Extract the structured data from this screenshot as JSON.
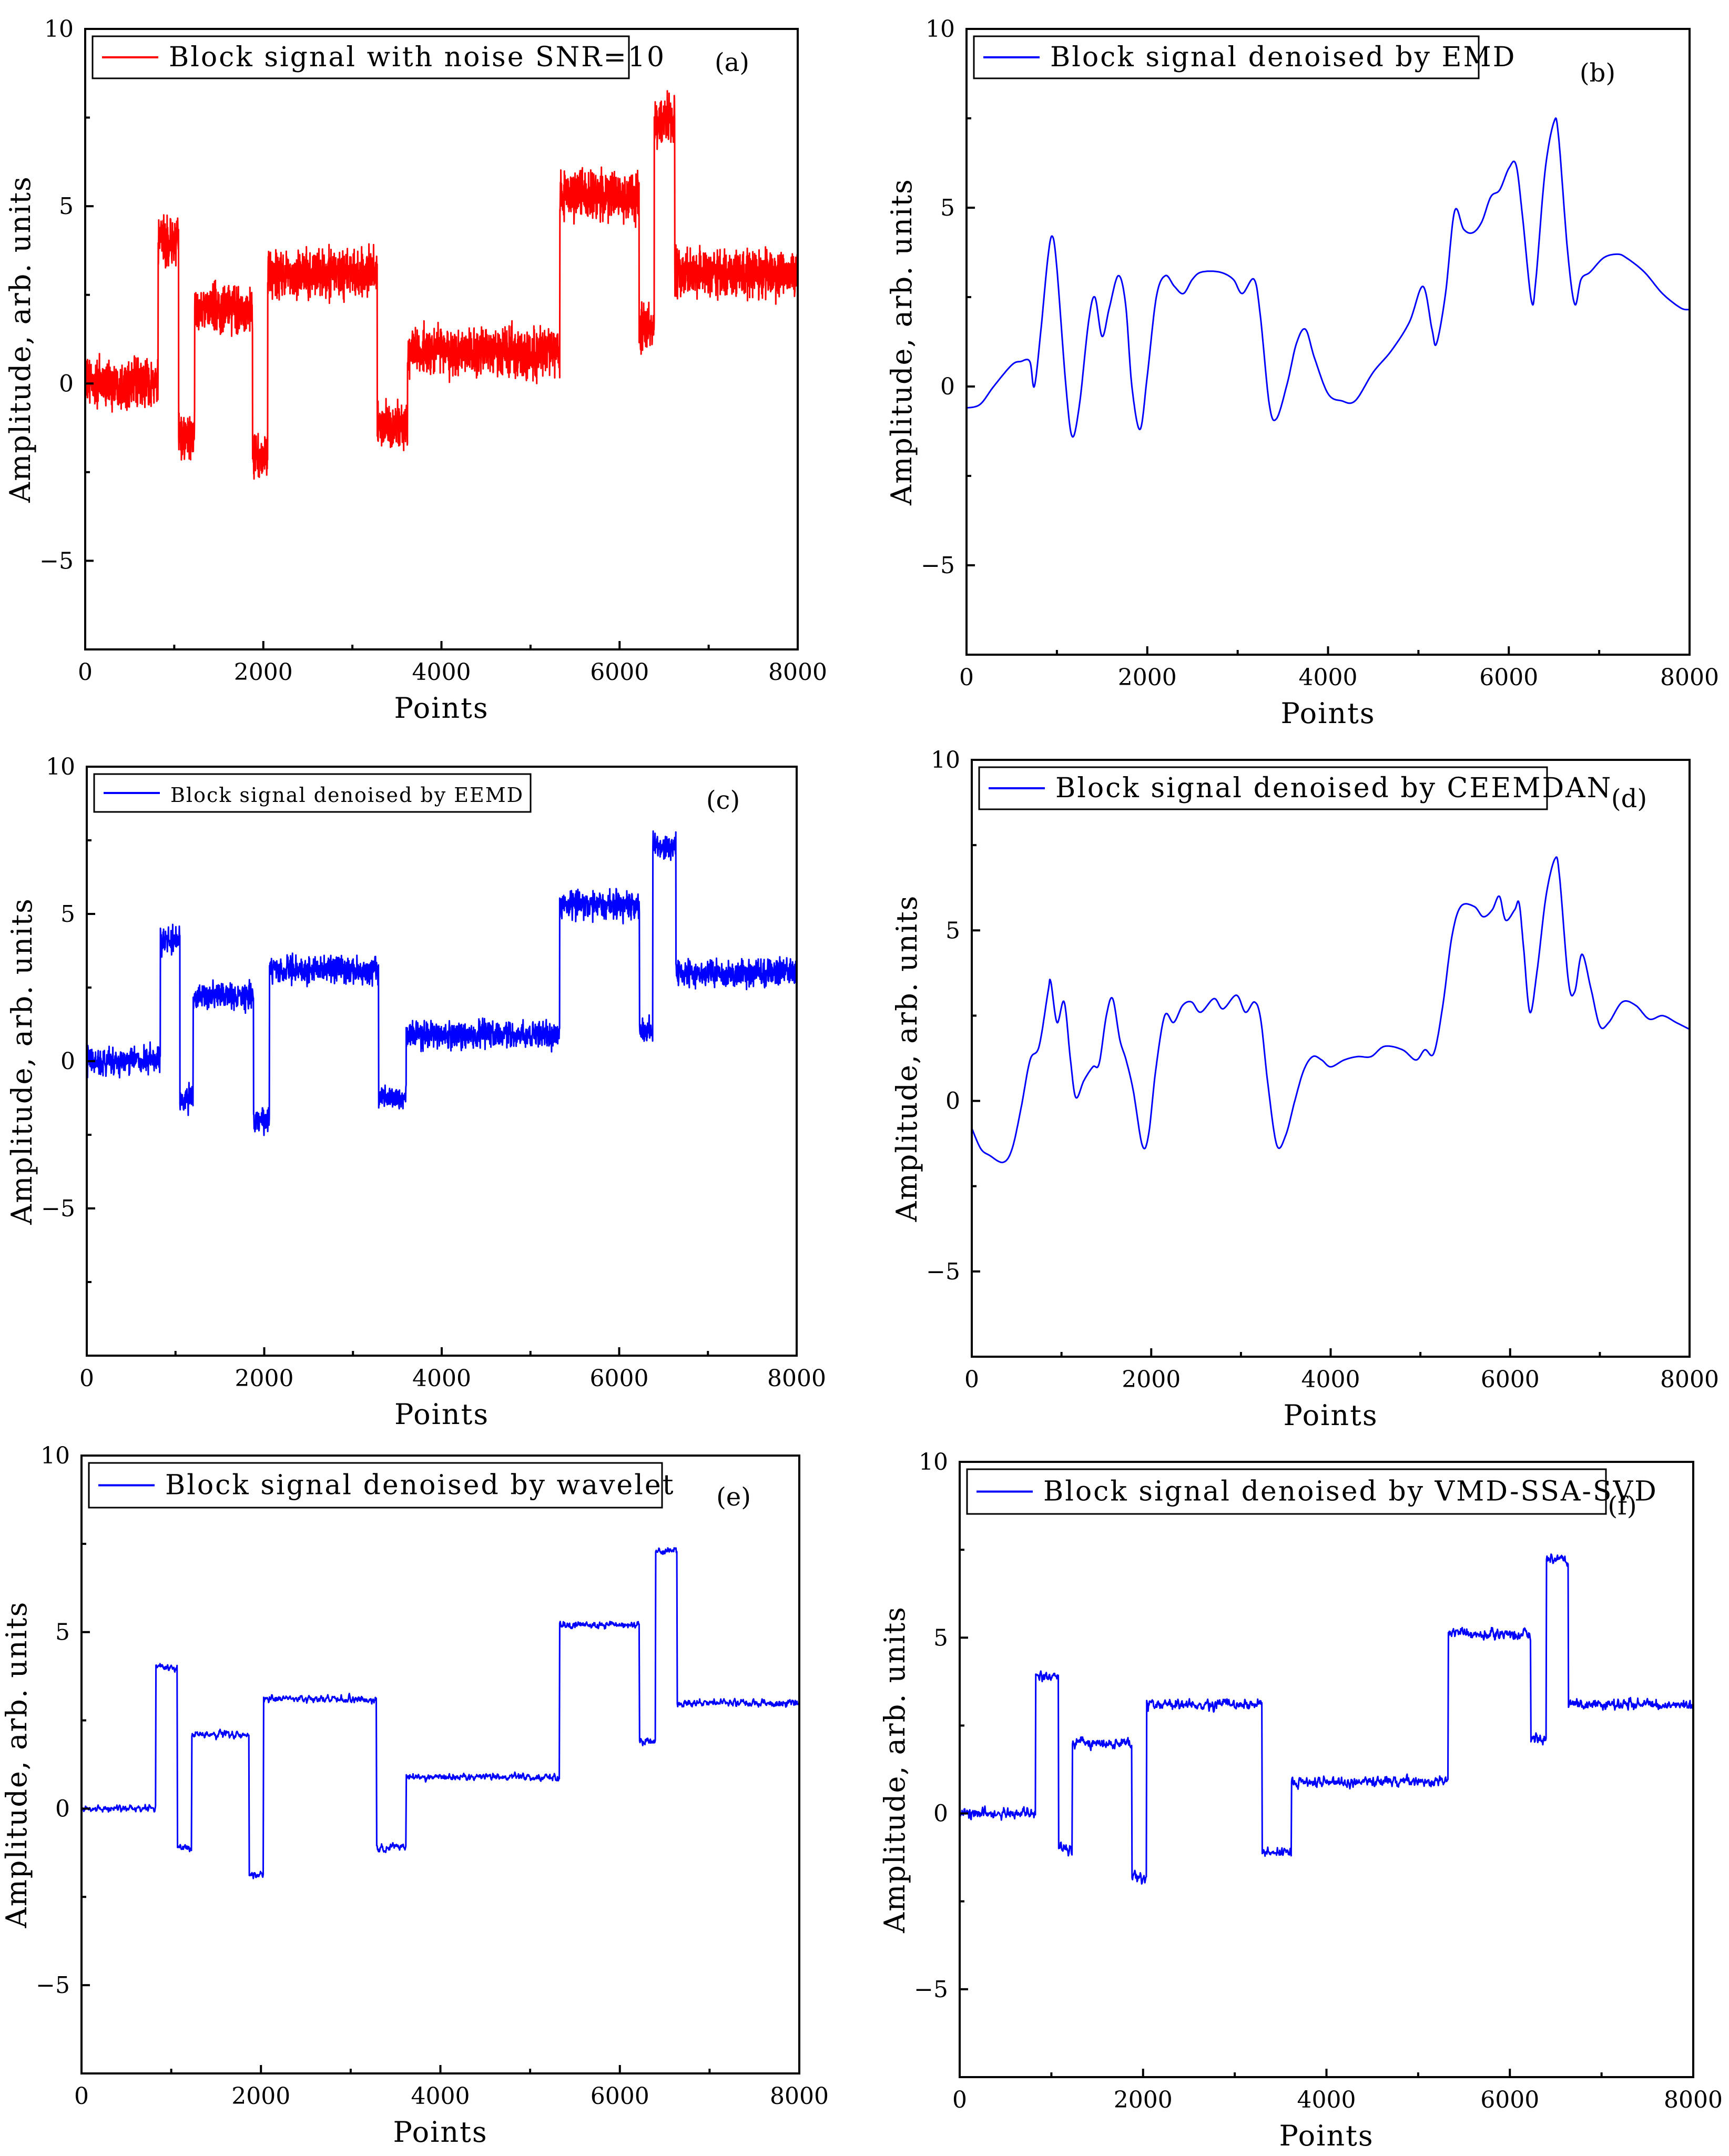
{
  "figure": {
    "x_axis_title": "Points",
    "y_axis_title": "Amplitude, arb. units"
  },
  "chart_data": [
    {
      "id": "a",
      "type": "line",
      "panel_label": "(a)",
      "legend": "Block signal with noise SNR=10",
      "color": "#ff0000",
      "xlabel": "Points",
      "ylabel": "Amplitude, arb. units",
      "xlim": [
        0,
        8000
      ],
      "ylim": [
        -7.5,
        10
      ],
      "xticks": [
        0,
        2000,
        4000,
        6000,
        8000
      ],
      "yticks": [
        -5,
        0,
        5,
        10
      ],
      "tick_labels_x": [
        "0",
        "2000",
        "4000",
        "6000",
        "8000"
      ],
      "tick_labels_y": [
        "−5",
        "0",
        "5",
        "10"
      ],
      "signal_model": {
        "kind": "noisy",
        "noise_amplitude": 1.3,
        "segments": [
          {
            "x0": 0,
            "x1": 820,
            "value": 0.0
          },
          {
            "x0": 820,
            "x1": 1050,
            "value": 4.0
          },
          {
            "x0": 1050,
            "x1": 1230,
            "value": -1.5
          },
          {
            "x0": 1230,
            "x1": 1880,
            "value": 2.1
          },
          {
            "x0": 1880,
            "x1": 2050,
            "value": -2.1
          },
          {
            "x0": 2050,
            "x1": 3280,
            "value": 3.1
          },
          {
            "x0": 3280,
            "x1": 3620,
            "value": -1.2
          },
          {
            "x0": 3620,
            "x1": 5330,
            "value": 0.9
          },
          {
            "x0": 5330,
            "x1": 6220,
            "value": 5.3
          },
          {
            "x0": 6220,
            "x1": 6390,
            "value": 1.6
          },
          {
            "x0": 6390,
            "x1": 6620,
            "value": 7.4
          },
          {
            "x0": 6620,
            "x1": 8000,
            "value": 3.1
          }
        ]
      }
    },
    {
      "id": "b",
      "type": "line",
      "panel_label": "(b)",
      "legend": "Block signal denoised by EMD",
      "color": "#0000ff",
      "xlabel": "Points",
      "ylabel": "Amplitude, arb. units",
      "xlim": [
        0,
        8000
      ],
      "ylim": [
        -7.5,
        10
      ],
      "xticks": [
        0,
        2000,
        4000,
        6000,
        8000
      ],
      "yticks": [
        -5,
        0,
        5,
        10
      ],
      "tick_labels_x": [
        "0",
        "2000",
        "4000",
        "6000",
        "8000"
      ],
      "tick_labels_y": [
        "−5",
        "0",
        "5",
        "10"
      ],
      "signal_model": {
        "kind": "smooth",
        "points": [
          [
            0,
            -0.6
          ],
          [
            150,
            -0.5
          ],
          [
            300,
            0.0
          ],
          [
            500,
            0.6
          ],
          [
            600,
            0.7
          ],
          [
            700,
            0.7
          ],
          [
            750,
            0.0
          ],
          [
            820,
            1.5
          ],
          [
            900,
            3.6
          ],
          [
            950,
            4.2
          ],
          [
            1000,
            3.3
          ],
          [
            1100,
            0.0
          ],
          [
            1170,
            -1.4
          ],
          [
            1250,
            -0.5
          ],
          [
            1350,
            1.8
          ],
          [
            1420,
            2.5
          ],
          [
            1500,
            1.4
          ],
          [
            1580,
            2.2
          ],
          [
            1680,
            3.1
          ],
          [
            1760,
            2.3
          ],
          [
            1830,
            0.0
          ],
          [
            1920,
            -1.2
          ],
          [
            2000,
            0.3
          ],
          [
            2100,
            2.5
          ],
          [
            2200,
            3.1
          ],
          [
            2300,
            2.8
          ],
          [
            2400,
            2.6
          ],
          [
            2500,
            3.0
          ],
          [
            2600,
            3.2
          ],
          [
            2800,
            3.2
          ],
          [
            2950,
            3.0
          ],
          [
            3050,
            2.6
          ],
          [
            3180,
            3.0
          ],
          [
            3250,
            2.0
          ],
          [
            3350,
            -0.5
          ],
          [
            3430,
            -0.9
          ],
          [
            3550,
            0.1
          ],
          [
            3650,
            1.2
          ],
          [
            3750,
            1.6
          ],
          [
            3850,
            0.8
          ],
          [
            4000,
            -0.2
          ],
          [
            4150,
            -0.4
          ],
          [
            4300,
            -0.4
          ],
          [
            4500,
            0.4
          ],
          [
            4700,
            1.0
          ],
          [
            4900,
            1.8
          ],
          [
            5050,
            2.8
          ],
          [
            5150,
            1.6
          ],
          [
            5200,
            1.2
          ],
          [
            5300,
            2.6
          ],
          [
            5400,
            4.9
          ],
          [
            5500,
            4.4
          ],
          [
            5600,
            4.3
          ],
          [
            5700,
            4.6
          ],
          [
            5800,
            5.3
          ],
          [
            5900,
            5.5
          ],
          [
            6000,
            6.1
          ],
          [
            6080,
            6.2
          ],
          [
            6150,
            4.8
          ],
          [
            6250,
            2.4
          ],
          [
            6300,
            3.0
          ],
          [
            6400,
            6.0
          ],
          [
            6500,
            7.4
          ],
          [
            6550,
            7.0
          ],
          [
            6650,
            3.8
          ],
          [
            6730,
            2.3
          ],
          [
            6800,
            3.0
          ],
          [
            6900,
            3.2
          ],
          [
            7050,
            3.6
          ],
          [
            7200,
            3.7
          ],
          [
            7300,
            3.6
          ],
          [
            7500,
            3.2
          ],
          [
            7700,
            2.6
          ],
          [
            7900,
            2.2
          ],
          [
            8000,
            2.15
          ]
        ]
      }
    },
    {
      "id": "c",
      "type": "line",
      "panel_label": "(c)",
      "legend": "Block signal denoised by EEMD",
      "color": "#0000ff",
      "xlabel": "Points",
      "ylabel": "Amplitude, arb. units",
      "xlim": [
        0,
        8000
      ],
      "ylim": [
        -10,
        10
      ],
      "xticks": [
        0,
        2000,
        4000,
        6000,
        8000
      ],
      "yticks": [
        -5,
        0,
        5,
        10
      ],
      "tick_labels_x": [
        "0",
        "2000",
        "4000",
        "6000",
        "8000"
      ],
      "tick_labels_y": [
        "−5",
        "0",
        "5",
        "10"
      ],
      "signal_model": {
        "kind": "noisy",
        "noise_amplitude": 0.9,
        "segments": [
          {
            "x0": 0,
            "x1": 830,
            "value": 0.0
          },
          {
            "x0": 830,
            "x1": 1050,
            "value": 4.1
          },
          {
            "x0": 1050,
            "x1": 1200,
            "value": -1.3
          },
          {
            "x0": 1200,
            "x1": 1880,
            "value": 2.2
          },
          {
            "x0": 1880,
            "x1": 2060,
            "value": -2.0
          },
          {
            "x0": 2060,
            "x1": 3290,
            "value": 3.1
          },
          {
            "x0": 3290,
            "x1": 3600,
            "value": -1.2
          },
          {
            "x0": 3600,
            "x1": 5330,
            "value": 0.9
          },
          {
            "x0": 5330,
            "x1": 6230,
            "value": 5.3
          },
          {
            "x0": 6230,
            "x1": 6380,
            "value": 1.0
          },
          {
            "x0": 6380,
            "x1": 6640,
            "value": 7.3
          },
          {
            "x0": 6640,
            "x1": 8000,
            "value": 3.0
          }
        ]
      }
    },
    {
      "id": "d",
      "type": "line",
      "panel_label": "(d)",
      "legend": "Block signal denoised by CEEMDAN",
      "color": "#0000ff",
      "xlabel": "Points",
      "ylabel": "Amplitude, arb. units",
      "xlim": [
        0,
        8000
      ],
      "ylim": [
        -7.5,
        10
      ],
      "xticks": [
        0,
        2000,
        4000,
        6000,
        8000
      ],
      "yticks": [
        -5,
        0,
        5,
        10
      ],
      "tick_labels_x": [
        "0",
        "2000",
        "4000",
        "6000",
        "8000"
      ],
      "tick_labels_y": [
        "−5",
        "0",
        "5",
        "10"
      ],
      "signal_model": {
        "kind": "smooth",
        "points": [
          [
            0,
            -0.8
          ],
          [
            100,
            -1.4
          ],
          [
            200,
            -1.6
          ],
          [
            350,
            -1.8
          ],
          [
            450,
            -1.4
          ],
          [
            550,
            -0.2
          ],
          [
            650,
            1.2
          ],
          [
            750,
            1.6
          ],
          [
            850,
            3.2
          ],
          [
            880,
            3.5
          ],
          [
            950,
            2.3
          ],
          [
            1030,
            2.9
          ],
          [
            1100,
            1.2
          ],
          [
            1160,
            0.1
          ],
          [
            1250,
            0.6
          ],
          [
            1350,
            1.0
          ],
          [
            1420,
            1.1
          ],
          [
            1500,
            2.5
          ],
          [
            1570,
            3.0
          ],
          [
            1650,
            1.8
          ],
          [
            1720,
            1.2
          ],
          [
            1800,
            0.3
          ],
          [
            1900,
            -1.3
          ],
          [
            1970,
            -1.0
          ],
          [
            2050,
            0.9
          ],
          [
            2150,
            2.5
          ],
          [
            2250,
            2.3
          ],
          [
            2350,
            2.8
          ],
          [
            2450,
            2.9
          ],
          [
            2550,
            2.6
          ],
          [
            2700,
            3.0
          ],
          [
            2800,
            2.7
          ],
          [
            2950,
            3.1
          ],
          [
            3050,
            2.6
          ],
          [
            3150,
            2.9
          ],
          [
            3220,
            2.4
          ],
          [
            3300,
            0.5
          ],
          [
            3400,
            -1.3
          ],
          [
            3500,
            -1.0
          ],
          [
            3600,
            0.0
          ],
          [
            3700,
            0.9
          ],
          [
            3800,
            1.3
          ],
          [
            3900,
            1.2
          ],
          [
            4000,
            1.0
          ],
          [
            4150,
            1.2
          ],
          [
            4300,
            1.3
          ],
          [
            4450,
            1.3
          ],
          [
            4600,
            1.6
          ],
          [
            4800,
            1.5
          ],
          [
            4950,
            1.2
          ],
          [
            5050,
            1.5
          ],
          [
            5150,
            1.4
          ],
          [
            5250,
            2.8
          ],
          [
            5350,
            4.8
          ],
          [
            5450,
            5.7
          ],
          [
            5600,
            5.7
          ],
          [
            5700,
            5.4
          ],
          [
            5800,
            5.6
          ],
          [
            5880,
            6.0
          ],
          [
            5950,
            5.3
          ],
          [
            6050,
            5.6
          ],
          [
            6100,
            5.8
          ],
          [
            6150,
            4.5
          ],
          [
            6220,
            2.6
          ],
          [
            6300,
            3.8
          ],
          [
            6400,
            6.0
          ],
          [
            6500,
            7.1
          ],
          [
            6550,
            6.6
          ],
          [
            6650,
            3.5
          ],
          [
            6720,
            3.2
          ],
          [
            6800,
            4.3
          ],
          [
            6900,
            3.3
          ],
          [
            7000,
            2.2
          ],
          [
            7100,
            2.3
          ],
          [
            7250,
            2.9
          ],
          [
            7400,
            2.8
          ],
          [
            7550,
            2.4
          ],
          [
            7700,
            2.5
          ],
          [
            7850,
            2.3
          ],
          [
            8000,
            2.1
          ]
        ]
      }
    },
    {
      "id": "e",
      "type": "line",
      "panel_label": "(e)",
      "legend": "Block signal denoised by wavelet",
      "color": "#0000ff",
      "xlabel": "Points",
      "ylabel": "Amplitude, arb. units",
      "xlim": [
        0,
        8000
      ],
      "ylim": [
        -7.5,
        10
      ],
      "xticks": [
        0,
        2000,
        4000,
        6000,
        8000
      ],
      "yticks": [
        -5,
        0,
        5,
        10
      ],
      "tick_labels_x": [
        "0",
        "2000",
        "4000",
        "6000",
        "8000"
      ],
      "tick_labels_y": [
        "−5",
        "0",
        "5",
        "10"
      ],
      "signal_model": {
        "kind": "noisy",
        "noise_amplitude": 0.35,
        "segments": [
          {
            "x0": 0,
            "x1": 830,
            "value": 0.0
          },
          {
            "x0": 830,
            "x1": 1070,
            "value": 4.0
          },
          {
            "x0": 1070,
            "x1": 1230,
            "value": -1.1
          },
          {
            "x0": 1230,
            "x1": 1870,
            "value": 2.1
          },
          {
            "x0": 1870,
            "x1": 2030,
            "value": -1.9
          },
          {
            "x0": 2030,
            "x1": 3290,
            "value": 3.1
          },
          {
            "x0": 3290,
            "x1": 3620,
            "value": -1.1
          },
          {
            "x0": 3620,
            "x1": 5330,
            "value": 0.9
          },
          {
            "x0": 5330,
            "x1": 6220,
            "value": 5.2
          },
          {
            "x0": 6220,
            "x1": 6400,
            "value": 1.9
          },
          {
            "x0": 6400,
            "x1": 6640,
            "value": 7.3
          },
          {
            "x0": 6640,
            "x1": 8000,
            "value": 3.0
          }
        ]
      }
    },
    {
      "id": "f",
      "type": "line",
      "panel_label": "(f)",
      "legend": "Block signal denoised by VMD-SSA-SVD",
      "color": "#0000ff",
      "xlabel": "Points",
      "ylabel": "Amplitude, arb. units",
      "xlim": [
        0,
        8000
      ],
      "ylim": [
        -7.5,
        10
      ],
      "xticks": [
        0,
        2000,
        4000,
        6000,
        8000
      ],
      "yticks": [
        -5,
        0,
        5,
        10
      ],
      "tick_labels_x": [
        "0",
        "2000",
        "4000",
        "6000",
        "8000"
      ],
      "tick_labels_y": [
        "−5",
        "0",
        "5",
        "10"
      ],
      "signal_model": {
        "kind": "noisy",
        "noise_amplitude": 0.5,
        "segments": [
          {
            "x0": 0,
            "x1": 830,
            "value": 0.0
          },
          {
            "x0": 830,
            "x1": 1080,
            "value": 3.9
          },
          {
            "x0": 1080,
            "x1": 1230,
            "value": -1.0
          },
          {
            "x0": 1230,
            "x1": 1880,
            "value": 2.0
          },
          {
            "x0": 1880,
            "x1": 2040,
            "value": -1.8
          },
          {
            "x0": 2040,
            "x1": 3300,
            "value": 3.1
          },
          {
            "x0": 3300,
            "x1": 3620,
            "value": -1.1
          },
          {
            "x0": 3620,
            "x1": 5330,
            "value": 0.9
          },
          {
            "x0": 5330,
            "x1": 6230,
            "value": 5.1
          },
          {
            "x0": 6230,
            "x1": 6400,
            "value": 2.1
          },
          {
            "x0": 6400,
            "x1": 6640,
            "value": 7.2
          },
          {
            "x0": 6640,
            "x1": 8000,
            "value": 3.1
          }
        ]
      }
    }
  ]
}
